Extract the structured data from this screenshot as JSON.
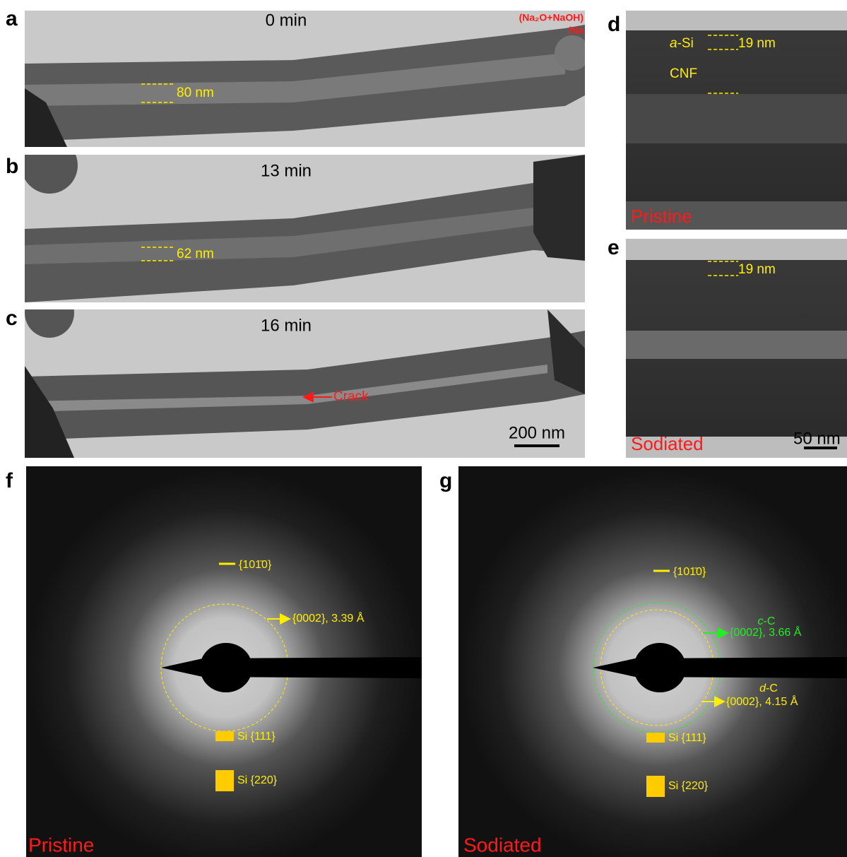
{
  "panels": {
    "a": {
      "label": "a",
      "time": "0 min",
      "product": "(Na₂O+NaOH)",
      "product_sub": "/Na",
      "width": "80 nm"
    },
    "b": {
      "label": "b",
      "time": "13 min",
      "width": "62 nm"
    },
    "c": {
      "label": "c",
      "time": "16 min",
      "crack": "Crack",
      "scale": "200 nm"
    },
    "d": {
      "label": "d",
      "layer_italic": "a",
      "layer_rest": "-Si",
      "thickness": "19 nm",
      "core": "CNF",
      "state": "Pristine"
    },
    "e": {
      "label": "e",
      "thickness": "19 nm",
      "state": "Sodiated",
      "scale": "50 nm"
    },
    "f": {
      "label": "f",
      "ring_1010": "{101̄0}",
      "ring_0002": "{0002}, 3.39 Å",
      "si111": "Si {111}",
      "si220": "Si {220}",
      "state": "Pristine"
    },
    "g": {
      "label": "g",
      "ring_1010": "{101̄0}",
      "cc_italic": "c",
      "cc_rest": "-C",
      "cc_ring": "{0002}, 3.66 Å",
      "dc_italic": "d",
      "dc_rest": "-C",
      "dc_ring": "{0002}, 4.15 Å",
      "si111": "Si {111}",
      "si220": "Si {220}",
      "state": "Sodiated"
    }
  }
}
